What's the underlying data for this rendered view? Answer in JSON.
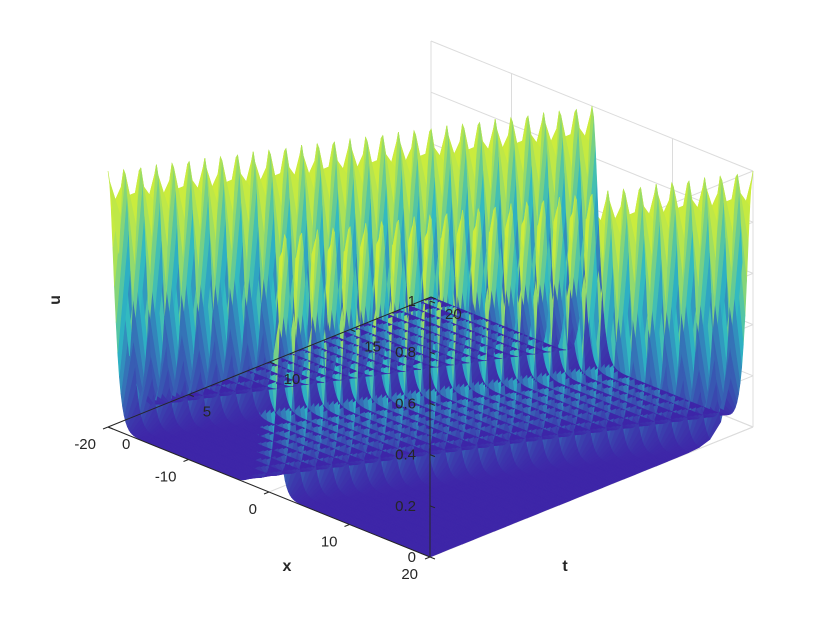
{
  "chart_data": {
    "type": "surface",
    "title": "",
    "xlabel": "x",
    "ylabel": "t",
    "zlabel": "u",
    "xlim": [
      -20,
      20
    ],
    "tlim": [
      0,
      20
    ],
    "zlim": [
      0,
      1
    ],
    "x_ticks": [
      {
        "value": -20,
        "label": "-20"
      },
      {
        "value": -10,
        "label": "-10"
      },
      {
        "value": 0,
        "label": "0"
      },
      {
        "value": 10,
        "label": "10"
      },
      {
        "value": 20,
        "label": "20"
      }
    ],
    "t_ticks": [
      {
        "value": 0,
        "label": "0"
      },
      {
        "value": 5,
        "label": "5"
      },
      {
        "value": 10,
        "label": "10"
      },
      {
        "value": 15,
        "label": "15"
      },
      {
        "value": 20,
        "label": "20"
      }
    ],
    "z_ticks": [
      {
        "value": 0,
        "label": "0"
      },
      {
        "value": 0.2,
        "label": "0.2"
      },
      {
        "value": 0.4,
        "label": "0.4"
      },
      {
        "value": 0.6,
        "label": "0.6"
      },
      {
        "value": 0.8,
        "label": "0.8"
      },
      {
        "value": 1,
        "label": "1"
      }
    ],
    "grid": true,
    "colormap": "parula",
    "surface_profile": {
      "description_of_shape": "two sharp peaks of height 1 along lines x=t and x=t-20, near-zero elsewhere",
      "ridges": [
        {
          "x_minus_t": 0,
          "peak": 1.0,
          "width": 1.0
        },
        {
          "x_minus_t": -20,
          "peak": 1.0,
          "width": 1.0
        }
      ],
      "baseline": 0.0
    },
    "colors": {
      "low": "#3e26a8",
      "mid": "#2db8c5",
      "high": "#f9fb15"
    }
  }
}
